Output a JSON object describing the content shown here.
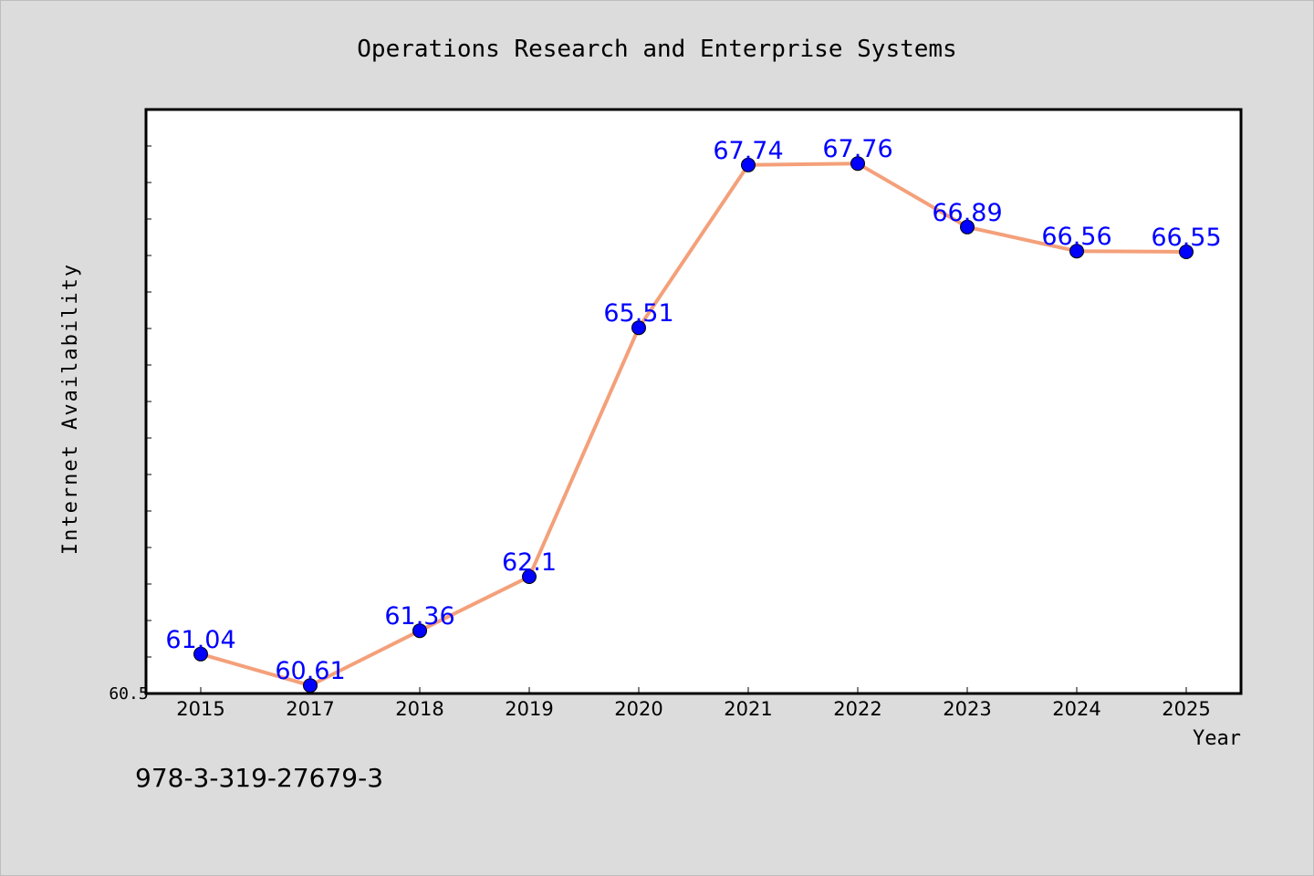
{
  "chart_data": {
    "type": "line",
    "title": "Operations Research and Enterprise Systems",
    "xlabel": "Year",
    "ylabel": "Internet Availability",
    "categories": [
      "2015",
      "2017",
      "2018",
      "2019",
      "2020",
      "2021",
      "2022",
      "2023",
      "2024",
      "2025"
    ],
    "values": [
      61.04,
      60.61,
      61.36,
      62.1,
      65.51,
      67.74,
      67.76,
      66.89,
      66.56,
      66.55
    ],
    "value_labels": [
      "61.04",
      "60.61",
      "61.36",
      "62.1",
      "65.51",
      "67.74",
      "67.76",
      "66.89",
      "66.56",
      "66.55"
    ],
    "ylim": [
      60.5,
      68.5
    ],
    "y_tick_label": "60.5",
    "grid": false,
    "colors": {
      "line": "#f4a07a",
      "marker": "#0000ff",
      "label": "#0000ff",
      "background": "#dcdcdc",
      "plot_background": "#ffffff"
    }
  },
  "footer": {
    "isbn": "978-3-319-27679-3"
  }
}
